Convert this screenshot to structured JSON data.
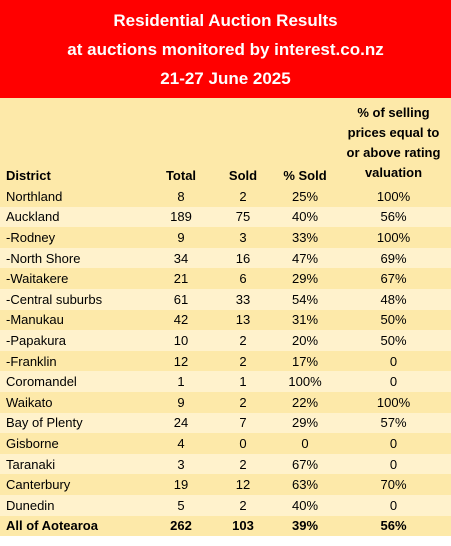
{
  "header": {
    "title_line1": "Residential Auction Results",
    "title_line2": "at auctions monitored by interest.co.nz",
    "title_line3": "21-27 June 2025"
  },
  "columns": {
    "district": "District",
    "total": "Total",
    "sold": "Sold",
    "pct_sold": "% Sold",
    "pct_rating_line1": "% of selling",
    "pct_rating_line2": "prices equal to",
    "pct_rating_line3": "or above rating",
    "pct_rating_line4": "valuation"
  },
  "rows": [
    {
      "district": "Northland",
      "total": "8",
      "sold": "2",
      "pct_sold": "25%",
      "pct_rating": "100%"
    },
    {
      "district": "Auckland",
      "total": "189",
      "sold": "75",
      "pct_sold": "40%",
      "pct_rating": "56%"
    },
    {
      "district": "-Rodney",
      "total": "9",
      "sold": "3",
      "pct_sold": "33%",
      "pct_rating": "100%"
    },
    {
      "district": "-North Shore",
      "total": "34",
      "sold": "16",
      "pct_sold": "47%",
      "pct_rating": "69%"
    },
    {
      "district": "-Waitakere",
      "total": "21",
      "sold": "6",
      "pct_sold": "29%",
      "pct_rating": "67%"
    },
    {
      "district": "-Central suburbs",
      "total": "61",
      "sold": "33",
      "pct_sold": "54%",
      "pct_rating": "48%"
    },
    {
      "district": "-Manukau",
      "total": "42",
      "sold": "13",
      "pct_sold": "31%",
      "pct_rating": "50%"
    },
    {
      "district": "-Papakura",
      "total": "10",
      "sold": "2",
      "pct_sold": "20%",
      "pct_rating": "50%"
    },
    {
      "district": "-Franklin",
      "total": "12",
      "sold": "2",
      "pct_sold": "17%",
      "pct_rating": "0"
    },
    {
      "district": "Coromandel",
      "total": "1",
      "sold": "1",
      "pct_sold": "100%",
      "pct_rating": "0"
    },
    {
      "district": "Waikato",
      "total": "9",
      "sold": "2",
      "pct_sold": "22%",
      "pct_rating": "100%"
    },
    {
      "district": "Bay of Plenty",
      "total": "24",
      "sold": "7",
      "pct_sold": "29%",
      "pct_rating": "57%"
    },
    {
      "district": "Gisborne",
      "total": "4",
      "sold": "0",
      "pct_sold": "0",
      "pct_rating": "0"
    },
    {
      "district": "Taranaki",
      "total": "3",
      "sold": "2",
      "pct_sold": "67%",
      "pct_rating": "0"
    },
    {
      "district": "Canterbury",
      "total": "19",
      "sold": "12",
      "pct_sold": "63%",
      "pct_rating": "70%"
    },
    {
      "district": "Dunedin",
      "total": "5",
      "sold": "2",
      "pct_sold": "40%",
      "pct_rating": "0"
    }
  ],
  "total_row": {
    "district": "All of Aotearoa",
    "total": "262",
    "sold": "103",
    "pct_sold": "39%",
    "pct_rating": "56%"
  },
  "colors": {
    "banner": "#ff0000",
    "row_dark": "#fde9a9",
    "row_light": "#fff2cc"
  }
}
